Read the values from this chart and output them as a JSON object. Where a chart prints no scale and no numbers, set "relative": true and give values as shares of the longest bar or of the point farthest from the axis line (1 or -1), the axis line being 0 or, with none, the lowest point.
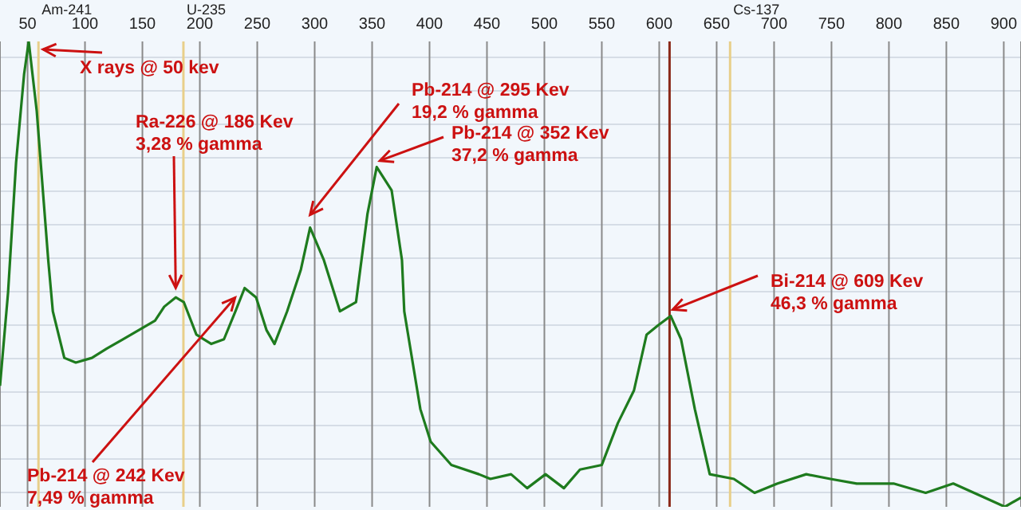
{
  "chart_data": {
    "type": "line",
    "relative": true,
    "grid": true,
    "marker": "none",
    "line_style": "solid",
    "xlim": [
      26,
      915
    ],
    "xticks": [
      50,
      100,
      150,
      200,
      250,
      300,
      350,
      400,
      450,
      500,
      550,
      600,
      650,
      700,
      750,
      800,
      850,
      900
    ],
    "series": [
      {
        "color": "#1e7b1e",
        "x": [
          26,
          33,
          40,
          47,
          51,
          58,
          68,
          72,
          82,
          92,
          106,
          119,
          133,
          147,
          161,
          169,
          179,
          186,
          197,
          210,
          221,
          231,
          239,
          249,
          258,
          265,
          276,
          288,
          296,
          308,
          322,
          336,
          346,
          354,
          367,
          376,
          378,
          392,
          401,
          419,
          443,
          453,
          471,
          485,
          501,
          517,
          531,
          550,
          564,
          578,
          589,
          599,
          610,
          619,
          631,
          644,
          665,
          683,
          703,
          728,
          749,
          772,
          804,
          832,
          856,
          883,
          901,
          915
        ],
        "values": [
          0.26,
          0.46,
          0.74,
          0.93,
          1.0,
          0.85,
          0.53,
          0.42,
          0.32,
          0.31,
          0.32,
          0.34,
          0.36,
          0.38,
          0.4,
          0.43,
          0.45,
          0.44,
          0.37,
          0.35,
          0.36,
          0.42,
          0.47,
          0.45,
          0.38,
          0.35,
          0.42,
          0.51,
          0.6,
          0.53,
          0.42,
          0.44,
          0.63,
          0.73,
          0.68,
          0.53,
          0.42,
          0.21,
          0.14,
          0.09,
          0.07,
          0.06,
          0.07,
          0.04,
          0.07,
          0.04,
          0.08,
          0.09,
          0.18,
          0.25,
          0.37,
          0.39,
          0.41,
          0.36,
          0.21,
          0.07,
          0.06,
          0.03,
          0.05,
          0.07,
          0.06,
          0.05,
          0.05,
          0.03,
          0.05,
          0.02,
          0,
          0.02
        ]
      }
    ],
    "ref_lines": [
      {
        "axis": "x",
        "value": 59.5,
        "label": "Am-241",
        "color": "#e8cf8a"
      },
      {
        "axis": "x",
        "value": 185.7,
        "label": "U-235",
        "color": "#e8cf8a"
      },
      {
        "axis": "x",
        "value": 609,
        "label": null,
        "color": "#8b2a1a"
      },
      {
        "axis": "x",
        "value": 661.7,
        "label": "Cs-137",
        "color": "#e8cf8a"
      }
    ],
    "annotations": [
      {
        "text": "X rays @ 50 kev",
        "x": 51,
        "y": 1.0
      },
      {
        "text": "Ra-226 @ 186 Kev\n3,28 % gamma",
        "x": 179,
        "y": 0.45
      },
      {
        "text": "Pb-214 @ 242 Kev\n7,49 % gamma",
        "x": 239,
        "y": 0.47
      },
      {
        "text": "Pb-214 @ 295 Kev\n19,2 % gamma",
        "x": 296,
        "y": 0.6
      },
      {
        "text": "Pb-214 @ 352 Kev\n37,2 % gamma",
        "x": 354,
        "y": 0.73
      },
      {
        "text": "Bi-214 @ 609 Kev\n46,3 % gamma",
        "x": 609,
        "y": 0.41
      }
    ]
  }
}
